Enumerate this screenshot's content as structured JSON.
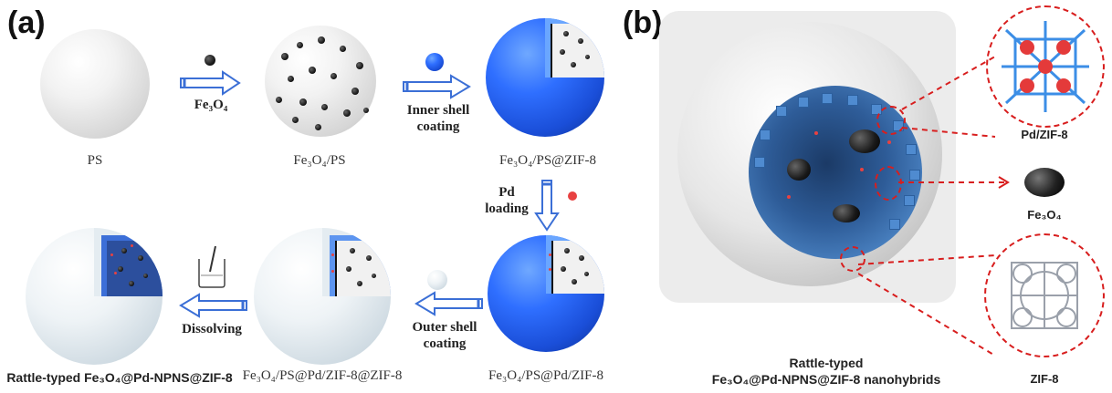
{
  "panel_a": {
    "label": "(a)",
    "stage_labels": {
      "ps": "PS",
      "fe3o4_ps": "Fe₃O₄/PS",
      "fe3o4_ps_zif8": "Fe₃O₄/PS@ZIF-8",
      "fe3o4_ps_pd_zif8": "Fe₃O₄/PS@Pd/ZIF-8",
      "fe3o4_ps_pd_zif8_zif8": "Fe₃O₄/PS@Pd/ZIF-8@ZIF-8",
      "rattle": "Rattle-typed Fe₃O₄@Pd-NPNS@ZIF-8"
    },
    "step_labels": {
      "fe3o4": "Fe₃O₄",
      "inner_line1": "Inner shell",
      "inner_line2": "coating",
      "pd_line1": "Pd",
      "pd_line2": "loading",
      "outer_line1": "Outer shell",
      "outer_line2": "coating",
      "dissolving": "Dissolving"
    }
  },
  "panel_b": {
    "label": "(b)",
    "title_line1": "Rattle-typed",
    "title_line2": "Fe₃O₄@Pd-NPNS@ZIF-8 nanohybrids",
    "callouts": {
      "pd_zif8": "Pd/ZIF-8",
      "fe3o4": "Fe₃O₄",
      "zif8": "ZIF-8"
    }
  },
  "colors": {
    "arrow_outline": "#3b6fd6",
    "shell_blue": "#2f6fff",
    "callout_red": "#d81e1e",
    "particle_black": "#111111",
    "pd_red": "#e84141"
  }
}
